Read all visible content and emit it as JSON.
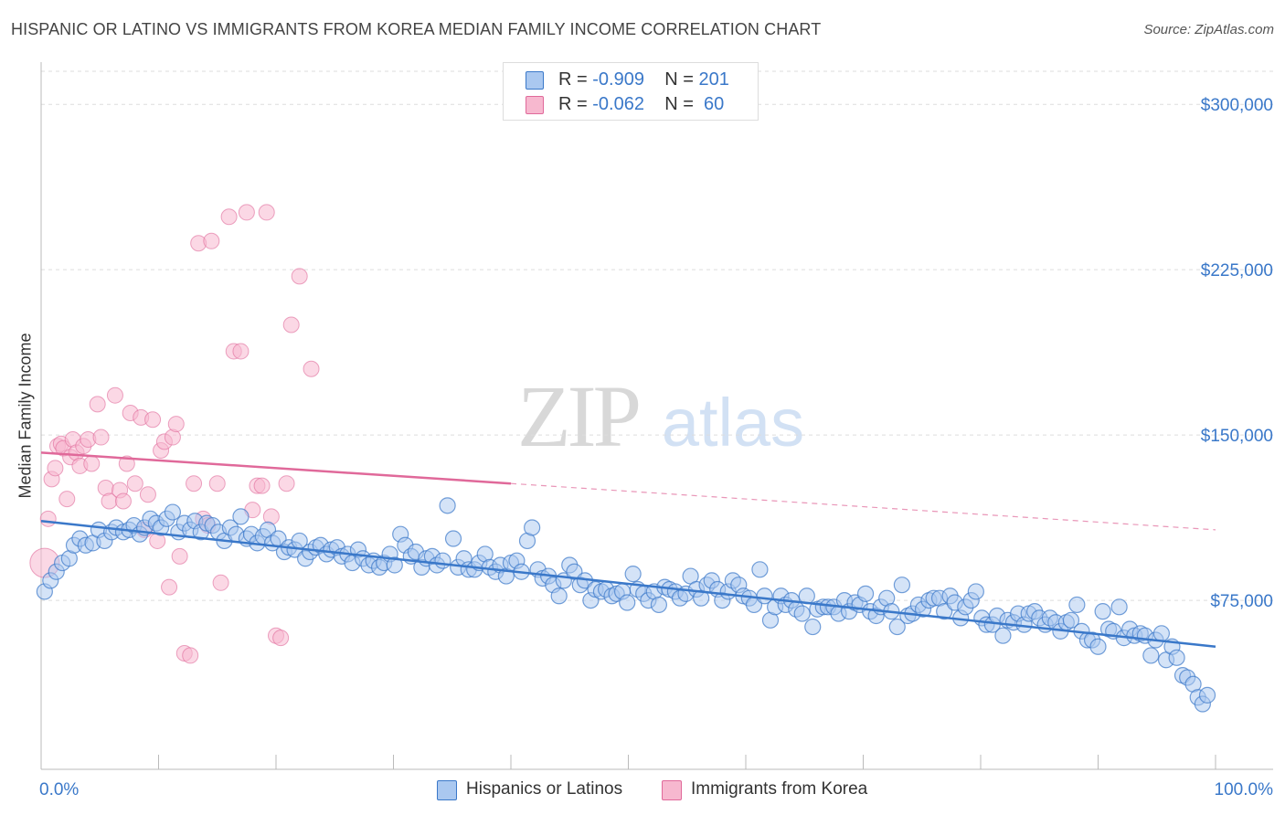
{
  "title": "HISPANIC OR LATINO VS IMMIGRANTS FROM KOREA MEDIAN FAMILY INCOME CORRELATION CHART",
  "source": "Source: ZipAtlas.com",
  "watermark": {
    "zip": "ZIP",
    "atlas": "atlas"
  },
  "colors": {
    "blue": "#3a78c9",
    "blue_fill": "#aac8f0",
    "pink": "#e0699a",
    "pink_fill": "#f7b8cf",
    "grid": "#dddddd"
  },
  "legend_top": [
    {
      "r_label": "R = ",
      "r_value": "-0.909",
      "n_label": "N = ",
      "n_value": "201",
      "color": "#aac8f0"
    },
    {
      "r_label": "R = ",
      "r_value": "-0.062",
      "n_label": "N = ",
      "n_value": " 60",
      "color": "#f7b8cf"
    }
  ],
  "legend_bottom": [
    {
      "label": "Hispanics or Latinos",
      "color": "#aac8f0"
    },
    {
      "label": "Immigrants from Korea",
      "color": "#f7b8cf"
    }
  ],
  "chart_data": {
    "type": "scatter",
    "title": "HISPANIC OR LATINO VS IMMIGRANTS FROM KOREA MEDIAN FAMILY INCOME CORRELATION CHART",
    "xlabel": "",
    "ylabel": "Median Family Income",
    "xlim": [
      0,
      100
    ],
    "ylim": [
      5000,
      315000
    ],
    "x_tick_labels": [
      "0.0%",
      "100.0%"
    ],
    "y_ticks": [
      75000,
      150000,
      225000,
      300000
    ],
    "y_tick_labels": [
      "$75,000",
      "$150,000",
      "$225,000",
      "$300,000"
    ],
    "grid": true,
    "series": [
      {
        "name": "Hispanics or Latinos",
        "color": "#3a78c9",
        "trend": {
          "x": [
            0,
            100
          ],
          "y": [
            111000,
            54000
          ]
        },
        "points": [
          [
            0.3,
            79000
          ],
          [
            0.8,
            84000
          ],
          [
            1.3,
            88000
          ],
          [
            1.8,
            92000
          ],
          [
            2.4,
            94000
          ],
          [
            2.8,
            100000
          ],
          [
            3.3,
            103000
          ],
          [
            3.8,
            100000
          ],
          [
            4.4,
            101000
          ],
          [
            4.9,
            107000
          ],
          [
            5.4,
            102000
          ],
          [
            6.0,
            106000
          ],
          [
            6.4,
            108000
          ],
          [
            7.0,
            106000
          ],
          [
            7.5,
            107000
          ],
          [
            7.9,
            109000
          ],
          [
            8.4,
            105000
          ],
          [
            8.8,
            108000
          ],
          [
            9.3,
            112000
          ],
          [
            9.8,
            110000
          ],
          [
            10.2,
            108000
          ],
          [
            10.7,
            112000
          ],
          [
            11.2,
            115000
          ],
          [
            11.7,
            106000
          ],
          [
            12.2,
            110000
          ],
          [
            12.7,
            107000
          ],
          [
            13.1,
            111000
          ],
          [
            13.6,
            106000
          ],
          [
            14.1,
            110000
          ],
          [
            14.6,
            109000
          ],
          [
            15.1,
            106000
          ],
          [
            15.6,
            102000
          ],
          [
            16.1,
            108000
          ],
          [
            16.6,
            105000
          ],
          [
            17.0,
            113000
          ],
          [
            17.5,
            103000
          ],
          [
            17.9,
            105000
          ],
          [
            18.4,
            101000
          ],
          [
            18.9,
            104000
          ],
          [
            19.3,
            107000
          ],
          [
            19.7,
            101000
          ],
          [
            20.2,
            103000
          ],
          [
            20.7,
            97000
          ],
          [
            21.1,
            99000
          ],
          [
            21.6,
            98000
          ],
          [
            22.0,
            102000
          ],
          [
            22.5,
            94000
          ],
          [
            22.9,
            97000
          ],
          [
            23.4,
            99000
          ],
          [
            23.8,
            100000
          ],
          [
            24.3,
            96000
          ],
          [
            24.7,
            98000
          ],
          [
            25.2,
            99000
          ],
          [
            25.6,
            95000
          ],
          [
            26.1,
            96000
          ],
          [
            26.5,
            92000
          ],
          [
            27.0,
            98000
          ],
          [
            27.4,
            94000
          ],
          [
            27.9,
            91000
          ],
          [
            28.3,
            93000
          ],
          [
            28.8,
            90000
          ],
          [
            29.2,
            92000
          ],
          [
            29.7,
            96000
          ],
          [
            30.1,
            91000
          ],
          [
            30.6,
            105000
          ],
          [
            31.0,
            100000
          ],
          [
            31.5,
            95000
          ],
          [
            31.9,
            97000
          ],
          [
            32.4,
            90000
          ],
          [
            32.8,
            94000
          ],
          [
            33.3,
            95000
          ],
          [
            33.7,
            91000
          ],
          [
            34.2,
            93000
          ],
          [
            34.6,
            118000
          ],
          [
            35.1,
            103000
          ],
          [
            35.5,
            90000
          ],
          [
            36.0,
            94000
          ],
          [
            36.4,
            89000
          ],
          [
            36.9,
            89000
          ],
          [
            37.3,
            92000
          ],
          [
            37.8,
            96000
          ],
          [
            38.2,
            90000
          ],
          [
            38.7,
            88000
          ],
          [
            39.1,
            91000
          ],
          [
            39.6,
            86000
          ],
          [
            40.0,
            92000
          ],
          [
            40.5,
            93000
          ],
          [
            40.9,
            88000
          ],
          [
            41.4,
            102000
          ],
          [
            41.8,
            108000
          ],
          [
            42.3,
            89000
          ],
          [
            42.7,
            85000
          ],
          [
            43.2,
            86000
          ],
          [
            43.6,
            82000
          ],
          [
            44.1,
            77000
          ],
          [
            44.5,
            84000
          ],
          [
            45.0,
            91000
          ],
          [
            45.4,
            88000
          ],
          [
            45.9,
            82000
          ],
          [
            46.3,
            84000
          ],
          [
            46.8,
            75000
          ],
          [
            47.2,
            80000
          ],
          [
            47.7,
            79000
          ],
          [
            48.1,
            80000
          ],
          [
            48.6,
            77000
          ],
          [
            49.0,
            78000
          ],
          [
            49.5,
            79000
          ],
          [
            49.9,
            74000
          ],
          [
            50.4,
            87000
          ],
          [
            50.8,
            80000
          ],
          [
            51.3,
            78000
          ],
          [
            51.7,
            75000
          ],
          [
            52.2,
            79000
          ],
          [
            52.6,
            73000
          ],
          [
            53.1,
            81000
          ],
          [
            53.5,
            80000
          ],
          [
            54.0,
            79000
          ],
          [
            54.4,
            76000
          ],
          [
            54.9,
            78000
          ],
          [
            55.3,
            86000
          ],
          [
            55.8,
            80000
          ],
          [
            56.2,
            76000
          ],
          [
            56.7,
            82000
          ],
          [
            57.1,
            84000
          ],
          [
            57.6,
            80000
          ],
          [
            58.0,
            75000
          ],
          [
            58.5,
            79000
          ],
          [
            58.9,
            84000
          ],
          [
            59.4,
            82000
          ],
          [
            59.8,
            77000
          ],
          [
            60.3,
            76000
          ],
          [
            60.7,
            73000
          ],
          [
            61.2,
            89000
          ],
          [
            61.6,
            77000
          ],
          [
            62.1,
            66000
          ],
          [
            62.5,
            72000
          ],
          [
            63.0,
            77000
          ],
          [
            63.4,
            73000
          ],
          [
            63.9,
            75000
          ],
          [
            64.3,
            71000
          ],
          [
            64.8,
            69000
          ],
          [
            65.2,
            77000
          ],
          [
            65.7,
            63000
          ],
          [
            66.1,
            71000
          ],
          [
            66.6,
            72000
          ],
          [
            67.0,
            72000
          ],
          [
            67.5,
            72000
          ],
          [
            67.9,
            69000
          ],
          [
            68.4,
            75000
          ],
          [
            68.8,
            70000
          ],
          [
            69.3,
            74000
          ],
          [
            69.7,
            73000
          ],
          [
            70.2,
            78000
          ],
          [
            70.6,
            70000
          ],
          [
            71.1,
            68000
          ],
          [
            71.5,
            72000
          ],
          [
            72.0,
            76000
          ],
          [
            72.4,
            70000
          ],
          [
            72.9,
            63000
          ],
          [
            73.3,
            82000
          ],
          [
            73.8,
            68000
          ],
          [
            74.2,
            69000
          ],
          [
            74.7,
            73000
          ],
          [
            75.1,
            71000
          ],
          [
            75.6,
            75000
          ],
          [
            76.0,
            76000
          ],
          [
            76.5,
            76000
          ],
          [
            76.9,
            70000
          ],
          [
            77.4,
            77000
          ],
          [
            77.8,
            74000
          ],
          [
            78.3,
            67000
          ],
          [
            78.7,
            72000
          ],
          [
            79.2,
            75000
          ],
          [
            79.6,
            79000
          ],
          [
            80.1,
            67000
          ],
          [
            80.5,
            64000
          ],
          [
            81.0,
            64000
          ],
          [
            81.4,
            68000
          ],
          [
            81.9,
            59000
          ],
          [
            82.3,
            66000
          ],
          [
            82.8,
            65000
          ],
          [
            83.2,
            69000
          ],
          [
            83.7,
            64000
          ],
          [
            84.1,
            69000
          ],
          [
            84.6,
            70000
          ],
          [
            85.0,
            67000
          ],
          [
            85.5,
            64000
          ],
          [
            85.9,
            67000
          ],
          [
            86.4,
            65000
          ],
          [
            86.8,
            61000
          ],
          [
            87.3,
            65000
          ],
          [
            87.7,
            66000
          ],
          [
            88.2,
            73000
          ],
          [
            88.6,
            61000
          ],
          [
            89.1,
            57000
          ],
          [
            89.5,
            57000
          ],
          [
            90.0,
            54000
          ],
          [
            90.4,
            70000
          ],
          [
            90.9,
            62000
          ],
          [
            91.3,
            61000
          ],
          [
            91.8,
            72000
          ],
          [
            92.2,
            58000
          ],
          [
            92.7,
            62000
          ],
          [
            93.1,
            59000
          ],
          [
            93.6,
            60000
          ],
          [
            94.0,
            59000
          ],
          [
            94.5,
            50000
          ],
          [
            94.9,
            57000
          ],
          [
            95.4,
            60000
          ],
          [
            95.8,
            48000
          ],
          [
            96.3,
            54000
          ],
          [
            96.7,
            49000
          ],
          [
            97.2,
            41000
          ],
          [
            97.6,
            40000
          ],
          [
            98.1,
            37000
          ],
          [
            98.5,
            31000
          ],
          [
            98.9,
            28000
          ],
          [
            99.3,
            32000
          ]
        ]
      },
      {
        "name": "Immigrants from Korea",
        "color": "#e0699a",
        "trend": {
          "x": [
            0,
            40,
            100
          ],
          "y": [
            142000,
            128000,
            107000
          ],
          "solid_until": 40
        },
        "points": [
          [
            0.3,
            92000
          ],
          [
            0.6,
            112000
          ],
          [
            0.9,
            130000
          ],
          [
            1.2,
            135000
          ],
          [
            1.4,
            145000
          ],
          [
            1.7,
            146000
          ],
          [
            1.9,
            144000
          ],
          [
            2.2,
            121000
          ],
          [
            2.5,
            140000
          ],
          [
            2.7,
            148000
          ],
          [
            3.0,
            142000
          ],
          [
            3.3,
            136000
          ],
          [
            3.6,
            145000
          ],
          [
            4.0,
            148000
          ],
          [
            4.3,
            137000
          ],
          [
            4.8,
            164000
          ],
          [
            5.1,
            149000
          ],
          [
            5.5,
            126000
          ],
          [
            5.8,
            120000
          ],
          [
            6.3,
            168000
          ],
          [
            6.7,
            125000
          ],
          [
            7.0,
            120000
          ],
          [
            7.3,
            137000
          ],
          [
            7.6,
            160000
          ],
          [
            8.0,
            128000
          ],
          [
            8.5,
            158000
          ],
          [
            8.8,
            107000
          ],
          [
            9.1,
            123000
          ],
          [
            9.5,
            157000
          ],
          [
            9.9,
            102000
          ],
          [
            10.2,
            143000
          ],
          [
            10.5,
            147000
          ],
          [
            10.9,
            81000
          ],
          [
            11.2,
            149000
          ],
          [
            11.5,
            155000
          ],
          [
            11.8,
            95000
          ],
          [
            12.2,
            51000
          ],
          [
            12.7,
            50000
          ],
          [
            13.0,
            128000
          ],
          [
            13.4,
            237000
          ],
          [
            13.8,
            112000
          ],
          [
            14.2,
            109000
          ],
          [
            14.5,
            238000
          ],
          [
            15.0,
            128000
          ],
          [
            15.3,
            83000
          ],
          [
            16.0,
            249000
          ],
          [
            16.4,
            188000
          ],
          [
            17.0,
            188000
          ],
          [
            17.5,
            251000
          ],
          [
            18.0,
            116000
          ],
          [
            18.4,
            127000
          ],
          [
            18.8,
            127000
          ],
          [
            19.2,
            251000
          ],
          [
            19.6,
            113000
          ],
          [
            20.0,
            59000
          ],
          [
            20.4,
            58000
          ],
          [
            20.9,
            128000
          ],
          [
            21.3,
            200000
          ],
          [
            22.0,
            222000
          ],
          [
            23.0,
            180000
          ]
        ]
      }
    ]
  }
}
